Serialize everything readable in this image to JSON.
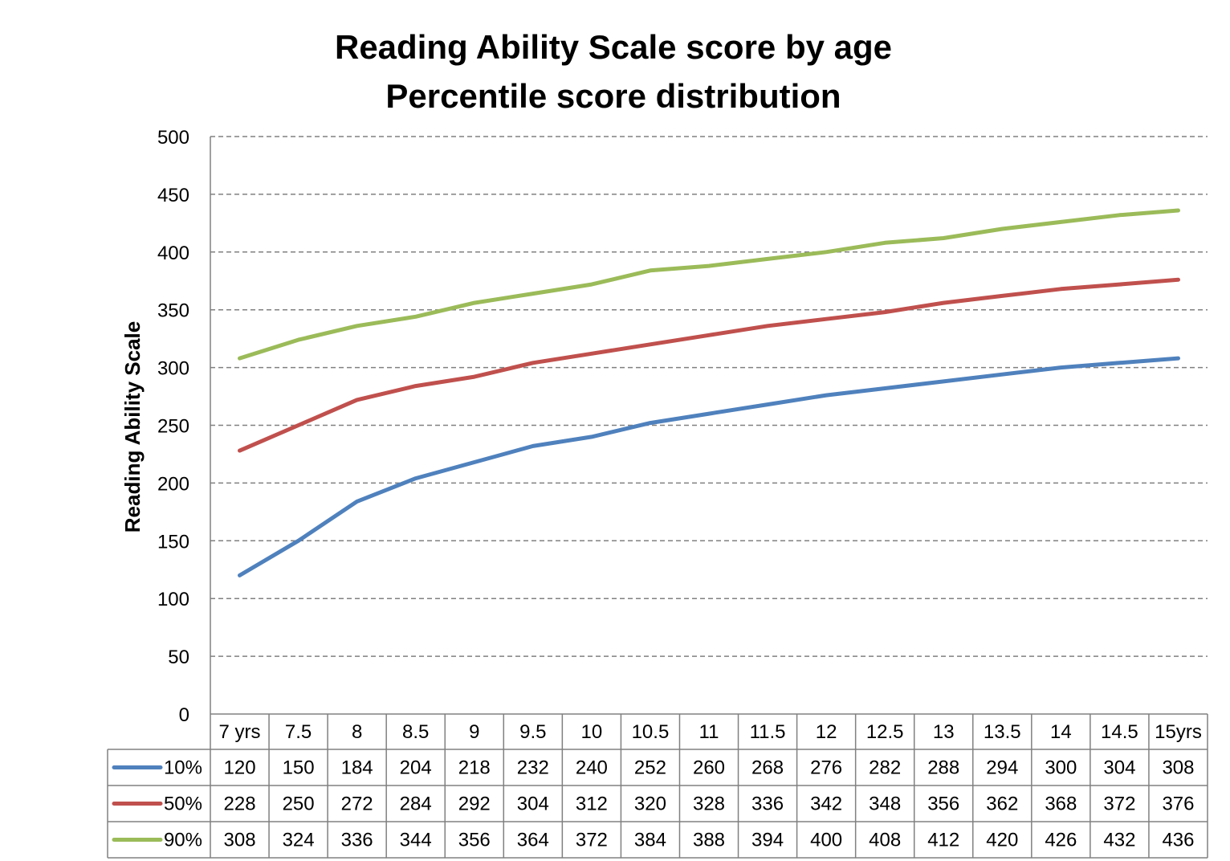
{
  "chart_data": {
    "type": "line",
    "title": [
      "Reading Ability Scale score by age",
      "Percentile score distribution"
    ],
    "ylabel": "Reading Ability Scale",
    "xlabel": "",
    "ylim": [
      0,
      500
    ],
    "ytick_step": 50,
    "grid": true,
    "legend": "data-table",
    "categories": [
      "7 yrs",
      "7.5",
      "8",
      "8.5",
      "9",
      "9.5",
      "10",
      "10.5",
      "11",
      "11.5",
      "12",
      "12.5",
      "13",
      "13.5",
      "14",
      "14.5",
      "15yrs"
    ],
    "series": [
      {
        "name": "10%",
        "color": "#4F81BD",
        "values": [
          120,
          150,
          184,
          204,
          218,
          232,
          240,
          252,
          260,
          268,
          276,
          282,
          288,
          294,
          300,
          304,
          308
        ]
      },
      {
        "name": "50%",
        "color": "#C0504D",
        "values": [
          228,
          250,
          272,
          284,
          292,
          304,
          312,
          320,
          328,
          336,
          342,
          348,
          356,
          362,
          368,
          372,
          376
        ]
      },
      {
        "name": "90%",
        "color": "#9BBB59",
        "values": [
          308,
          324,
          336,
          344,
          356,
          364,
          372,
          384,
          388,
          394,
          400,
          408,
          412,
          420,
          426,
          432,
          436
        ]
      }
    ]
  }
}
